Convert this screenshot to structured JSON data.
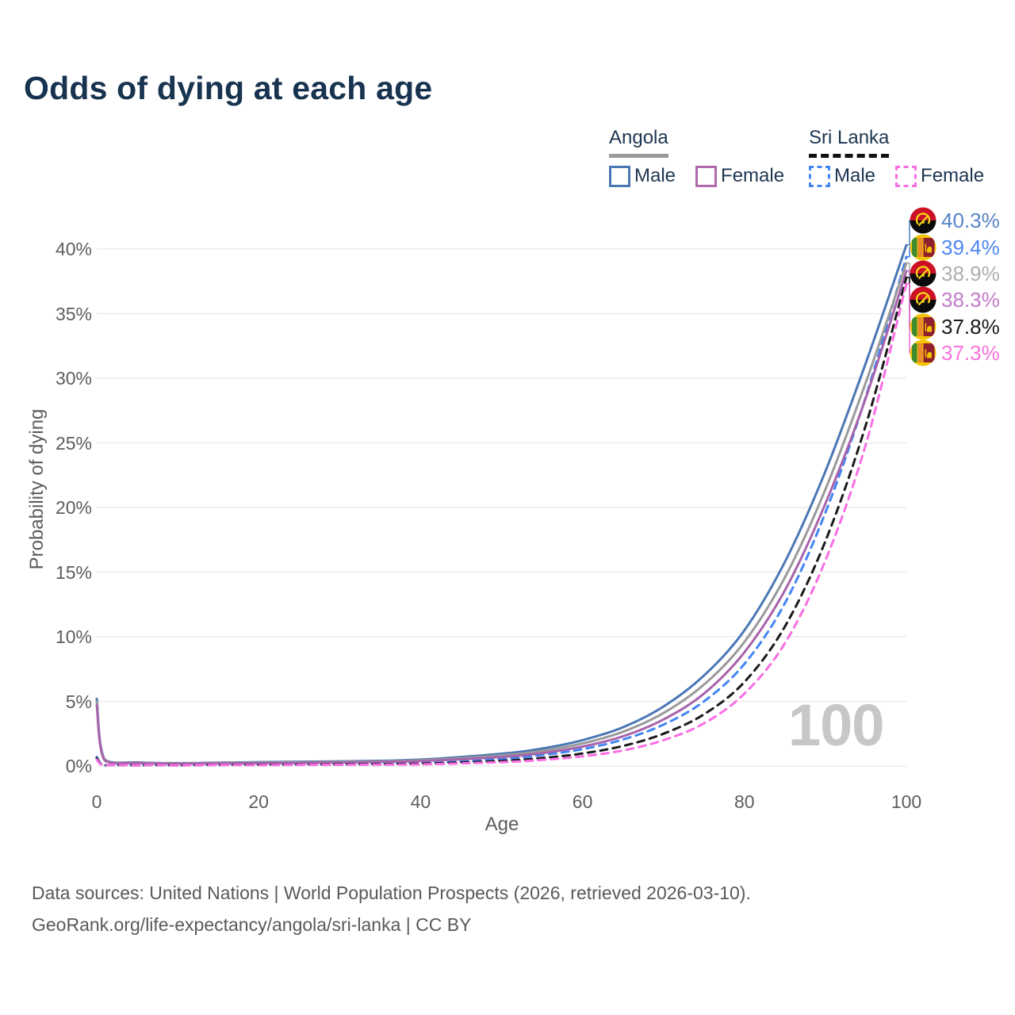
{
  "title": "Odds of dying at each age",
  "legend": {
    "groups": [
      {
        "country": "Angola",
        "line_style": "solid",
        "underline_color": "#9a9a9a",
        "items": [
          {
            "label": "Male",
            "color": "#4a77b4"
          },
          {
            "label": "Female",
            "color": "#b169ae"
          }
        ]
      },
      {
        "country": "Sri Lanka",
        "line_style": "dashed",
        "underline_color": "#111111",
        "items": [
          {
            "label": "Male",
            "color": "#4285f4"
          },
          {
            "label": "Female",
            "color": "#fa6ee4"
          }
        ]
      }
    ]
  },
  "chart_data": {
    "type": "line",
    "title": "Odds of dying at each age",
    "xlabel": "Age",
    "ylabel": "Probability of dying",
    "x_ticks": [
      0,
      20,
      40,
      60,
      80,
      100
    ],
    "y_ticks": [
      "0%",
      "5%",
      "10%",
      "15%",
      "20%",
      "25%",
      "30%",
      "35%",
      "40%"
    ],
    "xlim": [
      0,
      100
    ],
    "ylim_pct": [
      0,
      43
    ],
    "grid": "horizontal-only",
    "hover_age_watermark": "100",
    "x": [
      0,
      1,
      5,
      10,
      20,
      30,
      40,
      50,
      55,
      60,
      65,
      70,
      75,
      80,
      85,
      90,
      95,
      100
    ],
    "series": [
      {
        "name": "Angola Male",
        "country": "Angola",
        "sex": "Male",
        "color": "#4a77b4",
        "dash": false,
        "flag": "angola",
        "end_label": "40.3%",
        "end_value_pct": 40.3,
        "label_color": "#5584c8",
        "values": [
          5.2,
          0.5,
          0.28,
          0.22,
          0.3,
          0.36,
          0.5,
          0.95,
          1.35,
          2.0,
          3.0,
          4.6,
          7.0,
          10.5,
          15.8,
          22.8,
          31.2,
          40.3
        ]
      },
      {
        "name": "Sri Lanka Male",
        "country": "Sri Lanka",
        "sex": "Male",
        "color": "#4285f4",
        "dash": true,
        "flag": "srilanka",
        "end_label": "39.4%",
        "end_value_pct": 39.4,
        "label_color": "#4d86f0",
        "values": [
          0.7,
          0.06,
          0.04,
          0.05,
          0.12,
          0.16,
          0.25,
          0.55,
          0.85,
          1.3,
          2.05,
          3.2,
          5.0,
          7.9,
          12.6,
          19.6,
          28.6,
          39.4
        ]
      },
      {
        "name": "Angola",
        "country": "Angola",
        "sex": "Both",
        "color": "#9a9a9a",
        "dash": false,
        "flag": "angola",
        "end_label": "38.9%",
        "end_value_pct": 38.9,
        "label_color": "#aeaeae",
        "values": [
          4.95,
          0.46,
          0.25,
          0.2,
          0.26,
          0.31,
          0.44,
          0.82,
          1.17,
          1.75,
          2.65,
          4.1,
          6.3,
          9.6,
          14.6,
          21.4,
          29.7,
          38.9
        ]
      },
      {
        "name": "Angola Female",
        "country": "Angola",
        "sex": "Female",
        "color": "#a763ab",
        "dash": false,
        "flag": "angola",
        "end_label": "38.3%",
        "end_value_pct": 38.3,
        "label_color": "#c279c7",
        "values": [
          4.7,
          0.42,
          0.23,
          0.18,
          0.22,
          0.27,
          0.38,
          0.7,
          1.0,
          1.5,
          2.3,
          3.6,
          5.6,
          8.8,
          13.6,
          20.3,
          28.5,
          38.3
        ]
      },
      {
        "name": "Sri Lanka",
        "country": "Sri Lanka",
        "sex": "Both",
        "color": "#1a1a1a",
        "dash": true,
        "flag": "srilanka",
        "end_label": "37.8%",
        "end_value_pct": 37.8,
        "label_color": "#1a1a1a",
        "values": [
          0.6,
          0.05,
          0.035,
          0.04,
          0.09,
          0.12,
          0.18,
          0.4,
          0.62,
          0.97,
          1.55,
          2.5,
          4.0,
          6.5,
          10.8,
          17.4,
          26.4,
          37.8
        ]
      },
      {
        "name": "Sri Lanka Female",
        "country": "Sri Lanka",
        "sex": "Female",
        "color": "#fa6ee4",
        "dash": true,
        "flag": "srilanka",
        "end_label": "37.3%",
        "end_value_pct": 37.3,
        "label_color": "#fb71d9",
        "values": [
          0.5,
          0.045,
          0.03,
          0.035,
          0.06,
          0.09,
          0.13,
          0.3,
          0.47,
          0.75,
          1.2,
          2.0,
          3.3,
          5.6,
          9.5,
          15.9,
          24.9,
          37.3
        ]
      }
    ],
    "grid_color": "#ececec",
    "axis_text_color": "#5d5d5d"
  },
  "footer": {
    "line1": "Data sources: United Nations | World Population Prospects (2026, retrieved 2026-03-10).",
    "line2": "GeoRank.org/life-expectancy/angola/sri-lanka | CC BY"
  }
}
